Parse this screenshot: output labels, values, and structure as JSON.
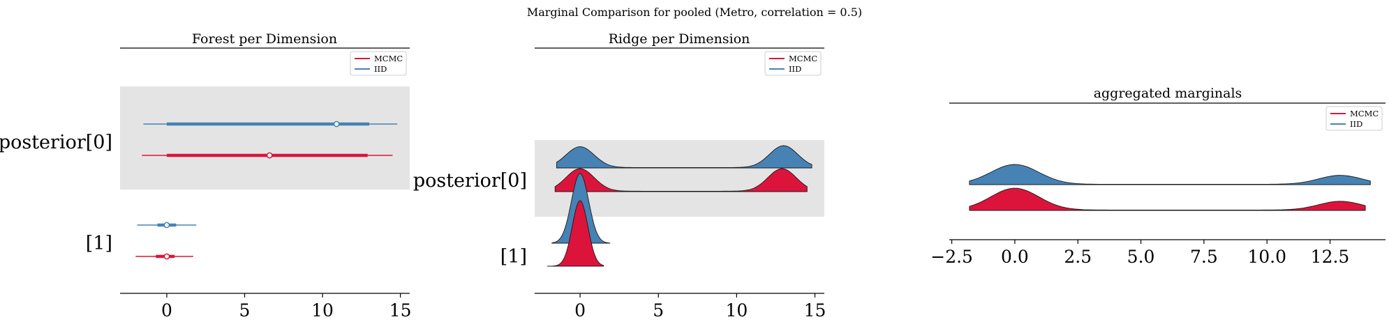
{
  "figure": {
    "suptitle": "Marginal Comparison for pooled (Metro, correlation = 0.5)"
  },
  "colors": {
    "mcmc": "#dc143c",
    "iid": "#4682b4",
    "band": "#e4e4e4",
    "axis": "#000000"
  },
  "chart_data": [
    {
      "type": "forest",
      "title": "Forest per Dimension",
      "legend": {
        "entries": [
          "MCMC",
          "IID"
        ],
        "placement": "top-right"
      },
      "xlim": [
        -3.0,
        15.6
      ],
      "xticks": [
        0,
        5,
        10,
        15
      ],
      "row_labels": [
        "posterior[0]",
        "[1]"
      ],
      "rows": [
        {
          "label": "posterior[0]",
          "series": [
            {
              "name": "IID",
              "hdi94": [
                -1.5,
                14.8
              ],
              "iqr": [
                0.0,
                13.0
              ],
              "median": 10.9
            },
            {
              "name": "MCMC",
              "hdi94": [
                -1.6,
                14.5
              ],
              "iqr": [
                0.0,
                12.9
              ],
              "median": 6.6
            }
          ]
        },
        {
          "label": "[1]",
          "series": [
            {
              "name": "IID",
              "hdi94": [
                -1.9,
                1.9
              ],
              "iqr": [
                -0.6,
                0.6
              ],
              "median": 0.0
            },
            {
              "name": "MCMC",
              "hdi94": [
                -2.0,
                1.7
              ],
              "iqr": [
                -0.7,
                0.5
              ],
              "median": 0.0
            }
          ]
        }
      ]
    },
    {
      "type": "area",
      "subtype": "ridgeline",
      "title": "Ridge per Dimension",
      "legend": {
        "entries": [
          "MCMC",
          "IID"
        ],
        "placement": "top-right"
      },
      "xlim": [
        -2.9,
        15.6
      ],
      "xticks": [
        0,
        5,
        10,
        15
      ],
      "row_labels": [
        "posterior[0]",
        "[1]"
      ],
      "rows": [
        {
          "label": "posterior[0]",
          "series": [
            {
              "name": "IID",
              "range": [
                -1.5,
                14.8
              ],
              "modes": [
                [
                  0.0,
                  0.9,
                  1.0
                ],
                [
                  13.0,
                  0.9,
                  1.05
                ]
              ],
              "floor": 0.02
            },
            {
              "name": "MCMC",
              "range": [
                -1.6,
                14.5
              ],
              "modes": [
                [
                  0.0,
                  0.9,
                  1.0
                ],
                [
                  12.9,
                  0.9,
                  1.0
                ]
              ],
              "floor": 0.02
            }
          ]
        },
        {
          "label": "[1]",
          "series": [
            {
              "name": "IID",
              "range": [
                -1.8,
                1.9
              ],
              "modes": [
                [
                  0.0,
                  0.55,
                  1.0
                ]
              ],
              "floor": 0.0
            },
            {
              "name": "MCMC",
              "range": [
                -2.1,
                1.5
              ],
              "modes": [
                [
                  0.0,
                  0.5,
                  1.0
                ]
              ],
              "floor": 0.0
            }
          ]
        }
      ]
    },
    {
      "type": "area",
      "subtype": "ridgeline",
      "title": "aggregated marginals",
      "legend": {
        "entries": [
          "MCMC",
          "IID"
        ],
        "placement": "top-right"
      },
      "xlim": [
        -2.6,
        14.7
      ],
      "xticks": [
        -2.5,
        0.0,
        2.5,
        5.0,
        7.5,
        10.0,
        12.5
      ],
      "tick_labels": [
        "−2.5",
        "0.0",
        "2.5",
        "5.0",
        "7.5",
        "10.0",
        "12.5"
      ],
      "series": [
        {
          "name": "IID",
          "range": [
            -1.8,
            14.1
          ],
          "modes": [
            [
              0.0,
              0.95,
              1.0
            ],
            [
              12.9,
              0.85,
              0.45
            ]
          ],
          "floor": 0.02
        },
        {
          "name": "MCMC",
          "range": [
            -1.8,
            13.9
          ],
          "modes": [
            [
              0.0,
              0.95,
              1.0
            ],
            [
              12.9,
              0.85,
              0.4
            ]
          ],
          "floor": 0.02
        }
      ]
    }
  ]
}
